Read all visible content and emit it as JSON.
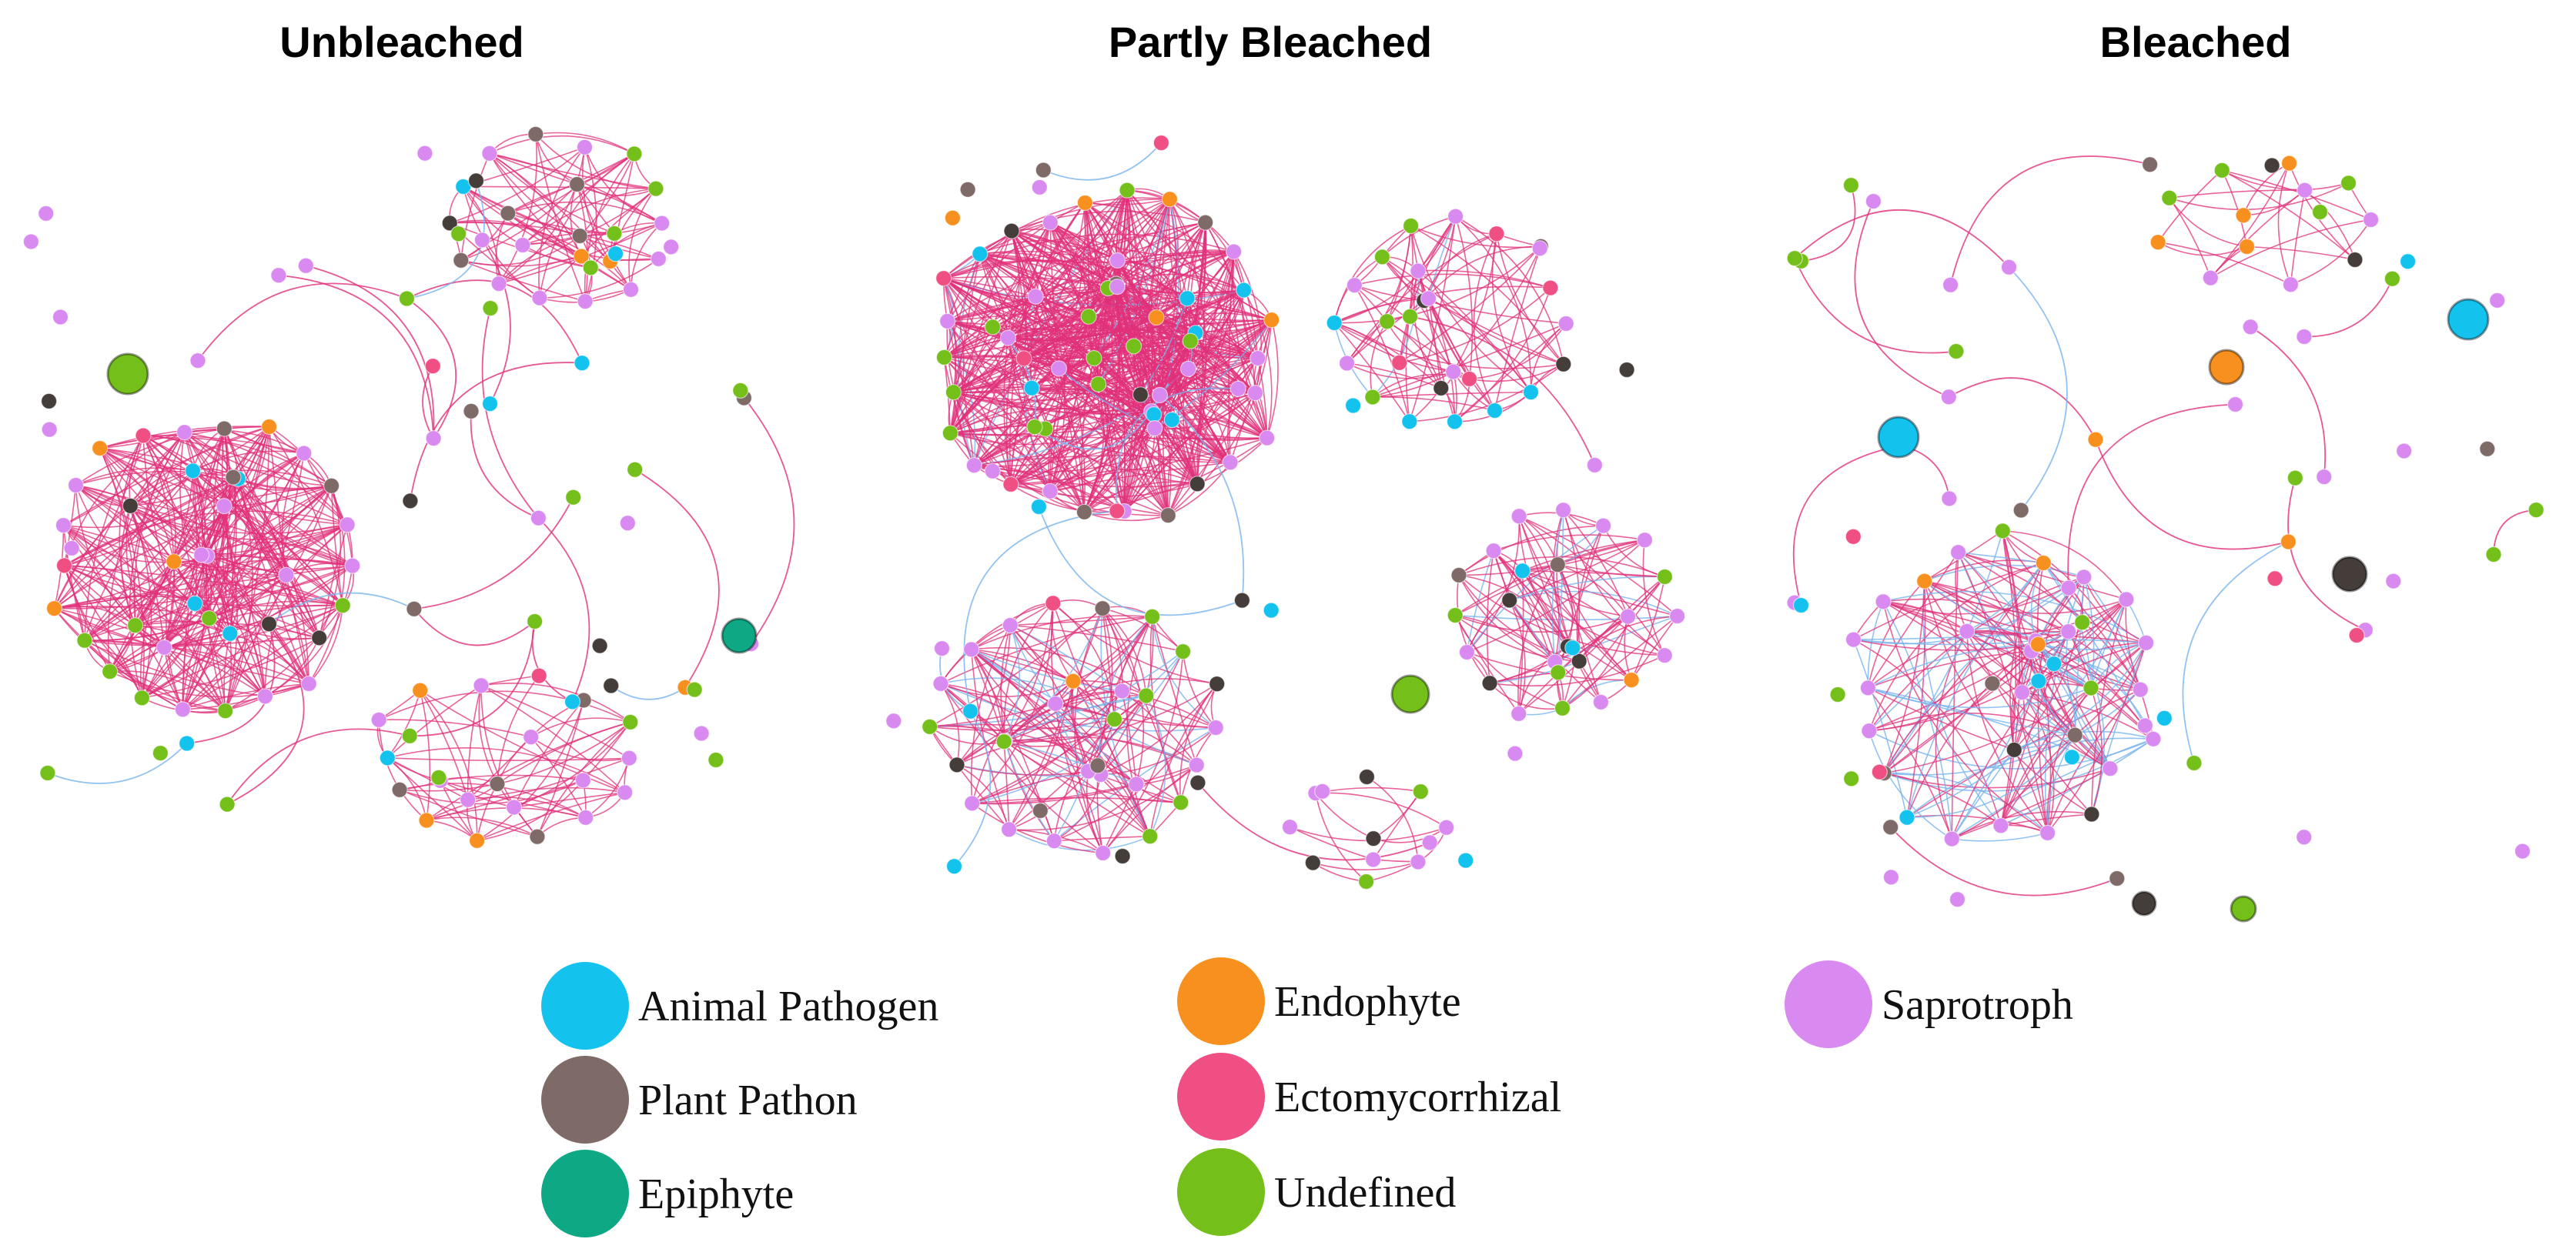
{
  "titles": {
    "unbleached": "Unbleached",
    "partly_bleached": "Partly Bleached",
    "bleached": "Bleached"
  },
  "colors": {
    "animal_pathogen": "#14c2ee",
    "plant_pathogen": "#7e6a66",
    "epiphyte": "#0fa884",
    "endophyte": "#f7901e",
    "ectomycorrhizal": "#ef4f82",
    "undefined": "#74bf1a",
    "saprotroph": "#d98af0",
    "dark": "#453d3a",
    "beige": "#c9aaa3",
    "edge_positive": "#e0307a",
    "edge_negative": "#78b4ee"
  },
  "legend": [
    {
      "label": "Animal Pathogen",
      "color_key": "animal_pathogen"
    },
    {
      "label": "Plant Pathon",
      "color_key": "plant_pathogen"
    },
    {
      "label": "Epiphyte",
      "color_key": "epiphyte"
    },
    {
      "label": "Endophyte",
      "color_key": "endophyte"
    },
    {
      "label": "Ectomycorrhizal",
      "color_key": "ectomycorrhizal"
    },
    {
      "label": "Undefined",
      "color_key": "undefined"
    },
    {
      "label": "Saprotroph",
      "color_key": "saprotroph"
    }
  ]
}
